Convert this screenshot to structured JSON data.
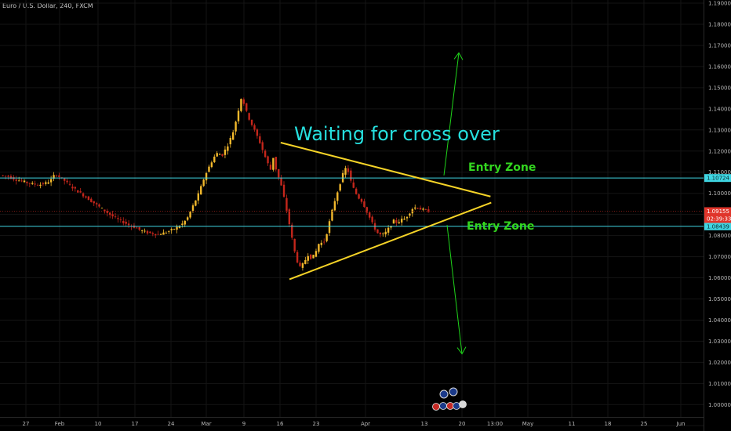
{
  "header": {
    "title": "Euro / U.S. Dollar, 240, FXCM"
  },
  "chart_data": {
    "type": "candlestick",
    "symbol": "Euro / U.S. Dollar",
    "interval": "240",
    "source": "FXCM",
    "ylim": [
      0.9875,
      1.1915
    ],
    "y_ticks": [
      "1.19000",
      "1.18000",
      "1.17000",
      "1.16000",
      "1.15000",
      "1.14000",
      "1.13000",
      "1.12000",
      "1.11000",
      "1.10000",
      "1.09000",
      "1.08000",
      "1.07000",
      "1.06000",
      "1.05000",
      "1.04000",
      "1.03000",
      "1.02000",
      "1.01000",
      "1.00000",
      "0.99000"
    ],
    "x_ticks": [
      "27",
      "Feb",
      "10",
      "17",
      "24",
      "Mar",
      "9",
      "16",
      "23",
      "Apr",
      "13",
      "20",
      "13:00",
      "May",
      "11",
      "18",
      "25",
      "Jun"
    ],
    "price_path": [
      [
        0,
        1.1085
      ],
      [
        4,
        1.108
      ],
      [
        8,
        1.1065
      ],
      [
        12,
        1.1055
      ],
      [
        16,
        1.1045
      ],
      [
        20,
        1.104
      ],
      [
        24,
        1.105
      ],
      [
        27,
        1.107
      ],
      [
        28,
        1.1095
      ],
      [
        30,
        1.108
      ],
      [
        33,
        1.106
      ],
      [
        36,
        1.1035
      ],
      [
        39,
        1.1015
      ],
      [
        42,
        1.0995
      ],
      [
        45,
        1.0975
      ],
      [
        48,
        1.0955
      ],
      [
        51,
        1.0935
      ],
      [
        54,
        1.0915
      ],
      [
        57,
        1.0895
      ],
      [
        60,
        1.0878
      ],
      [
        63,
        1.0865
      ],
      [
        66,
        1.085
      ],
      [
        69,
        1.084
      ],
      [
        72,
        1.0825
      ],
      [
        75,
        1.0815
      ],
      [
        78,
        1.081
      ],
      [
        81,
        1.0805
      ],
      [
        84,
        1.0812
      ],
      [
        87,
        1.0822
      ],
      [
        90,
        1.0835
      ],
      [
        93,
        1.085
      ],
      [
        96,
        1.088
      ],
      [
        99,
        1.094
      ],
      [
        102,
        1.1
      ],
      [
        105,
        1.108
      ],
      [
        108,
        1.114
      ],
      [
        111,
        1.119
      ],
      [
        114,
        1.118
      ],
      [
        117,
        1.123
      ],
      [
        120,
        1.13
      ],
      [
        122,
        1.138
      ],
      [
        124,
        1.146
      ],
      [
        125,
        1.143
      ],
      [
        127,
        1.137
      ],
      [
        129,
        1.133
      ],
      [
        131,
        1.129
      ],
      [
        133,
        1.125
      ],
      [
        135,
        1.12
      ],
      [
        137,
        1.115
      ],
      [
        139,
        1.111
      ],
      [
        140,
        1.118
      ],
      [
        142,
        1.11
      ],
      [
        144,
        1.105
      ],
      [
        146,
        1.097
      ],
      [
        148,
        1.088
      ],
      [
        150,
        1.078
      ],
      [
        152,
        1.069
      ],
      [
        154,
        1.065
      ],
      [
        156,
        1.067
      ],
      [
        158,
        1.071
      ],
      [
        160,
        1.069
      ],
      [
        162,
        1.072
      ],
      [
        164,
        1.077
      ],
      [
        166,
        1.076
      ],
      [
        168,
        1.082
      ],
      [
        170,
        1.09
      ],
      [
        172,
        1.097
      ],
      [
        174,
        1.103
      ],
      [
        176,
        1.109
      ],
      [
        178,
        1.113
      ],
      [
        180,
        1.106
      ],
      [
        182,
        1.101
      ],
      [
        184,
        1.098
      ],
      [
        186,
        1.096
      ],
      [
        188,
        1.092
      ],
      [
        190,
        1.088
      ],
      [
        192,
        1.084
      ],
      [
        194,
        1.081
      ],
      [
        196,
        1.08
      ],
      [
        198,
        1.0815
      ],
      [
        200,
        1.084
      ],
      [
        202,
        1.087
      ],
      [
        204,
        1.086
      ],
      [
        206,
        1.0875
      ],
      [
        208,
        1.088
      ],
      [
        210,
        1.0905
      ],
      [
        212,
        1.093
      ],
      [
        214,
        1.0935
      ],
      [
        216,
        1.0925
      ],
      [
        218,
        1.092
      ],
      [
        220,
        1.0915
      ]
    ],
    "price_path_x_range": [
      0,
      220
    ],
    "horizontal_levels": [
      {
        "value": 1.10724,
        "label": "1.10724",
        "color": "#3fd6e3"
      },
      {
        "value": 1.08439,
        "label": "1.08439",
        "color": "#3fd6e3"
      }
    ],
    "current_price": {
      "value": 1.09155,
      "label": "1.09155",
      "countdown": "02:39:33",
      "color": "#e0352b"
    },
    "triangle": {
      "upper": [
        [
          1.124,
          0.384
        ],
        [
          1.0985,
          0.671
        ]
      ],
      "lower": [
        [
          1.0593,
          0.396
        ],
        [
          1.0956,
          0.672
        ]
      ],
      "color": "#f5d327"
    },
    "arrows": {
      "color": "#1fd41a",
      "up_target": 1.1665,
      "down_target": 1.024
    },
    "annotations": {
      "main": "Waiting for cross over",
      "upper_zone": "Entry Zone",
      "lower_zone": "Entry Zone"
    },
    "colors": {
      "up": "#f2b82c",
      "down": "#c4261b",
      "grid": "#141414",
      "axis_text": "#b8b8b8"
    }
  },
  "icons": {
    "events": [
      "event-bubble-icon",
      "event-flag-icon"
    ]
  }
}
